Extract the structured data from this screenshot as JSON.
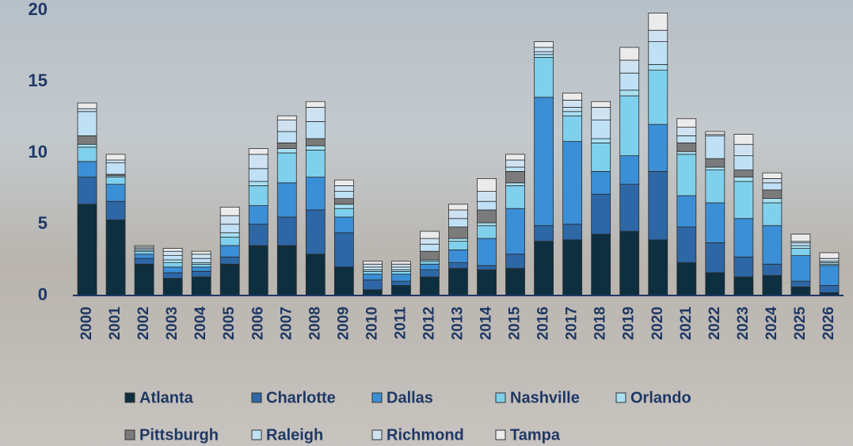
{
  "chart_data": {
    "type": "stacked_bar",
    "categories": [
      "2000",
      "2001",
      "2002",
      "2003",
      "2004",
      "2005",
      "2006",
      "2007",
      "2008",
      "2009",
      "2010",
      "2011",
      "2012",
      "2013",
      "2014",
      "2015",
      "2016",
      "2017",
      "2018",
      "2019",
      "2020",
      "2021",
      "2022",
      "2023",
      "2024",
      "2025",
      "2026"
    ],
    "series": [
      {
        "name": "Atlanta",
        "color": "#0e2f3f",
        "values": [
          6.4,
          5.3,
          2.2,
          1.2,
          1.3,
          2.2,
          3.5,
          3.5,
          2.9,
          2.0,
          0.4,
          0.7,
          1.3,
          1.9,
          1.8,
          1.9,
          3.8,
          3.9,
          4.3,
          4.5,
          3.9,
          2.3,
          1.6,
          1.3,
          1.4,
          0.6,
          0.2
        ]
      },
      {
        "name": "Charlotte",
        "color": "#2d67a6",
        "values": [
          1.9,
          1.3,
          0.4,
          0.4,
          0.4,
          0.5,
          1.5,
          2.0,
          3.1,
          2.4,
          0.7,
          0.3,
          0.5,
          0.4,
          0.3,
          1.0,
          1.1,
          1.1,
          2.8,
          3.3,
          4.8,
          2.5,
          2.1,
          1.4,
          0.8,
          0.4,
          0.5
        ]
      },
      {
        "name": "Dallas",
        "color": "#3b8fd6",
        "values": [
          1.1,
          1.2,
          0.3,
          0.4,
          0.3,
          0.8,
          1.3,
          2.4,
          2.3,
          1.1,
          0.4,
          0.5,
          0.4,
          0.9,
          1.9,
          3.2,
          9.0,
          5.8,
          1.6,
          2.0,
          3.3,
          2.2,
          2.8,
          2.7,
          2.7,
          1.8,
          1.4
        ]
      },
      {
        "name": "Nashville",
        "color": "#7fd0ec",
        "values": [
          1.0,
          0.5,
          0.2,
          0.3,
          0.2,
          0.6,
          1.4,
          2.1,
          1.9,
          0.6,
          0.2,
          0.2,
          0.2,
          0.6,
          0.9,
          1.6,
          2.8,
          1.8,
          2.0,
          4.2,
          3.8,
          2.9,
          2.3,
          2.6,
          1.6,
          0.5,
          0.1
        ]
      },
      {
        "name": "Orlando",
        "color": "#a9e1f3",
        "values": [
          0.2,
          0.1,
          0.1,
          0.2,
          0.1,
          0.3,
          0.3,
          0.3,
          0.3,
          0.3,
          0.1,
          0.1,
          0.1,
          0.2,
          0.2,
          0.2,
          0.2,
          0.3,
          0.3,
          0.4,
          0.4,
          0.2,
          0.2,
          0.3,
          0.3,
          0.2,
          0.1
        ]
      },
      {
        "name": "Pittsburgh",
        "color": "#7b7b7b",
        "values": [
          0.6,
          0.1,
          0,
          0,
          0,
          0,
          0,
          0.4,
          0.5,
          0.4,
          0,
          0,
          0.6,
          0.8,
          0.9,
          0.8,
          0,
          0,
          0,
          0,
          0,
          0.6,
          0.6,
          0.5,
          0.6,
          0,
          0
        ]
      },
      {
        "name": "Raleigh",
        "color": "#bfe0f5",
        "values": [
          1.7,
          0.8,
          0.1,
          0.3,
          0.3,
          0.6,
          0.9,
          0.8,
          1.2,
          0.5,
          0.2,
          0.2,
          0.5,
          0.6,
          0.6,
          0.3,
          0.2,
          0.3,
          1.3,
          1.2,
          1.6,
          0.5,
          1.6,
          1.0,
          0.5,
          0.2,
          0.1
        ]
      },
      {
        "name": "Richmond",
        "color": "#cfe2f2",
        "values": [
          0.2,
          0.2,
          0.1,
          0.3,
          0.3,
          0.6,
          1.0,
          0.8,
          1.0,
          0.4,
          0.2,
          0.2,
          0.4,
          0.6,
          0.7,
          0.5,
          0.3,
          0.5,
          0.9,
          0.9,
          0.8,
          0.6,
          0.1,
          0.8,
          0.3,
          0.1,
          0.2
        ]
      },
      {
        "name": "Tampa",
        "color": "#ebebeb",
        "values": [
          0.4,
          0.4,
          0.1,
          0.2,
          0.2,
          0.6,
          0.4,
          0.3,
          0.4,
          0.4,
          0.2,
          0.2,
          0.5,
          0.4,
          0.9,
          0.4,
          0.4,
          0.5,
          0.4,
          0.9,
          1.2,
          0.6,
          0.2,
          0.7,
          0.4,
          0.5,
          0.4
        ]
      }
    ],
    "ylim": [
      0,
      20
    ],
    "yticks": [
      0,
      5,
      10,
      15,
      20
    ],
    "grid": false,
    "legend": "bottom"
  }
}
